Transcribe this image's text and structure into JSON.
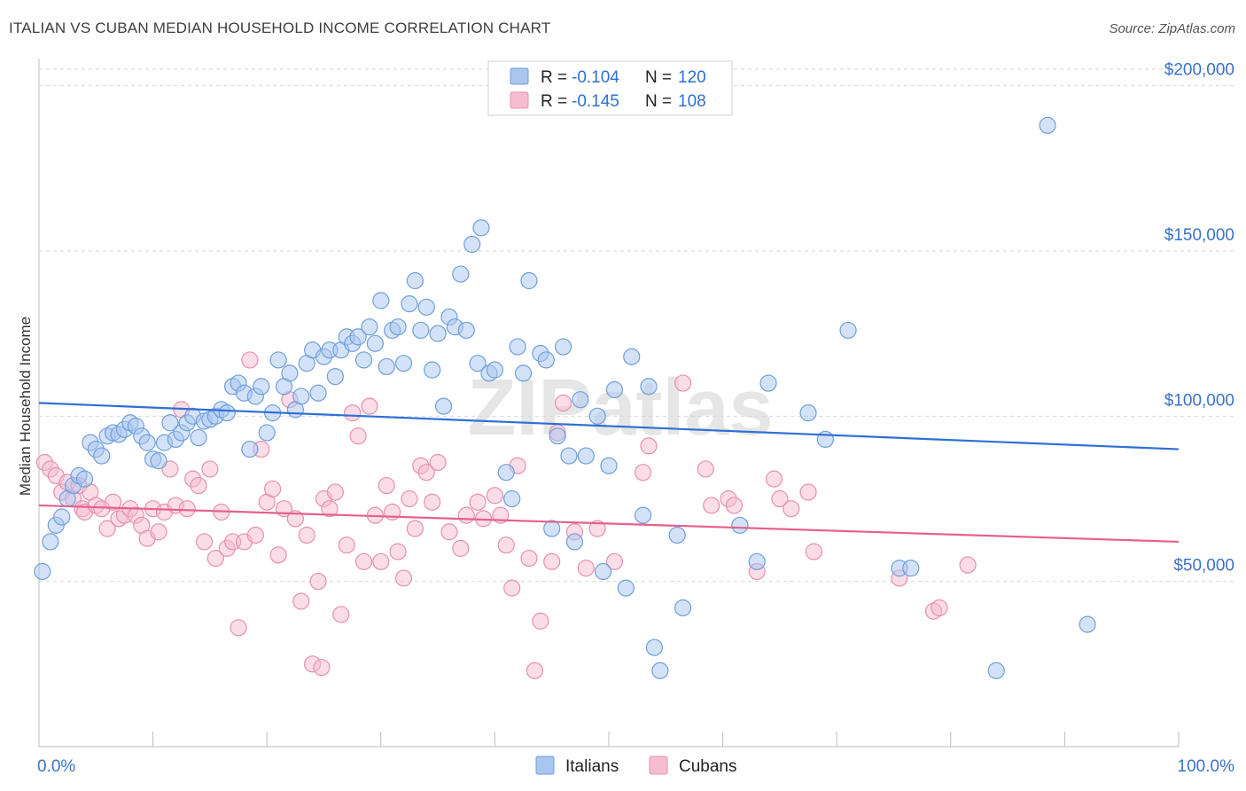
{
  "title": "ITALIAN VS CUBAN MEDIAN HOUSEHOLD INCOME CORRELATION CHART",
  "source": "Source: ZipAtlas.com",
  "watermark": "ZIPatlas",
  "colors": {
    "italians_fill": "#a9c6ef",
    "italians_stroke": "#6f9fdd",
    "italians_line": "#2f6fd6",
    "cubans_fill": "#f6bcd0",
    "cubans_stroke": "#e98fb0",
    "cubans_line": "#e5608f",
    "tick_label": "#3a72c9",
    "grid": "#d7d7d7"
  },
  "legend": {
    "rows": [
      {
        "r_label": "R =",
        "r_value": "-0.104",
        "n_label": "N =",
        "n_value": "120"
      },
      {
        "r_label": "R =",
        "r_value": "-0.145",
        "n_label": "N =",
        "n_value": "108"
      }
    ]
  },
  "bottom_legend": [
    "Italians",
    "Cubans"
  ],
  "chart_data": {
    "type": "scatter",
    "ylabel": "Median Household Income",
    "xlabel": "",
    "x_tick_labels": [
      "0.0%",
      "100.0%"
    ],
    "y_tick_labels": [
      "$50,000",
      "$100,000",
      "$150,000",
      "$200,000"
    ],
    "y_ticks": [
      50000,
      100000,
      150000,
      200000
    ],
    "xlim": [
      0,
      100
    ],
    "ylim": [
      0,
      205000
    ],
    "grid": "horizontal dashed",
    "legend_placement": "top-center",
    "series": [
      {
        "name": "Italians",
        "trend": {
          "x0": 0,
          "y0": 104000,
          "x1": 100,
          "y1": 90000
        },
        "points": [
          [
            0.3,
            53000
          ],
          [
            1,
            62000
          ],
          [
            1.5,
            67000
          ],
          [
            2,
            69500
          ],
          [
            2.5,
            75000
          ],
          [
            3,
            79000
          ],
          [
            3.5,
            82000
          ],
          [
            4,
            81000
          ],
          [
            4.5,
            92000
          ],
          [
            5,
            90000
          ],
          [
            5.5,
            88000
          ],
          [
            6,
            94000
          ],
          [
            6.5,
            95000
          ],
          [
            7,
            94500
          ],
          [
            7.5,
            96000
          ],
          [
            8,
            98000
          ],
          [
            8.5,
            97000
          ],
          [
            9,
            94000
          ],
          [
            9.5,
            92000
          ],
          [
            10,
            87000
          ],
          [
            10.5,
            86500
          ],
          [
            11,
            92000
          ],
          [
            11.5,
            98000
          ],
          [
            12,
            93000
          ],
          [
            12.5,
            95000
          ],
          [
            13,
            98000
          ],
          [
            13.5,
            100000
          ],
          [
            14,
            93500
          ],
          [
            14.5,
            98500
          ],
          [
            15,
            99000
          ],
          [
            15.5,
            100000
          ],
          [
            16,
            102000
          ],
          [
            16.5,
            101000
          ],
          [
            17,
            109000
          ],
          [
            17.5,
            110000
          ],
          [
            18,
            107000
          ],
          [
            18.5,
            90000
          ],
          [
            19,
            106000
          ],
          [
            19.5,
            109000
          ],
          [
            20,
            95000
          ],
          [
            20.5,
            101000
          ],
          [
            21,
            117000
          ],
          [
            21.5,
            109000
          ],
          [
            22,
            113000
          ],
          [
            22.5,
            102000
          ],
          [
            23,
            106000
          ],
          [
            23.5,
            116000
          ],
          [
            24,
            120000
          ],
          [
            24.5,
            107000
          ],
          [
            25,
            118000
          ],
          [
            25.5,
            120000
          ],
          [
            26,
            112000
          ],
          [
            26.5,
            120000
          ],
          [
            27,
            124000
          ],
          [
            27.5,
            122000
          ],
          [
            28,
            124000
          ],
          [
            28.5,
            117000
          ],
          [
            29,
            127000
          ],
          [
            29.5,
            122000
          ],
          [
            30,
            135000
          ],
          [
            30.5,
            115000
          ],
          [
            31,
            126000
          ],
          [
            31.5,
            127000
          ],
          [
            32,
            116000
          ],
          [
            32.5,
            134000
          ],
          [
            33,
            141000
          ],
          [
            33.5,
            126000
          ],
          [
            34,
            133000
          ],
          [
            34.5,
            114000
          ],
          [
            35,
            125000
          ],
          [
            35.5,
            103000
          ],
          [
            36,
            130000
          ],
          [
            36.5,
            127000
          ],
          [
            37,
            143000
          ],
          [
            37.5,
            126000
          ],
          [
            38,
            152000
          ],
          [
            38.5,
            116000
          ],
          [
            38.8,
            157000
          ],
          [
            39.5,
            113000
          ],
          [
            40,
            114000
          ],
          [
            41,
            83000
          ],
          [
            41.5,
            75000
          ],
          [
            42,
            121000
          ],
          [
            42.5,
            113000
          ],
          [
            43,
            141000
          ],
          [
            44,
            119000
          ],
          [
            44.5,
            117000
          ],
          [
            45,
            66000
          ],
          [
            45.5,
            94000
          ],
          [
            46,
            121000
          ],
          [
            46.5,
            88000
          ],
          [
            47,
            62000
          ],
          [
            47.5,
            105000
          ],
          [
            48,
            88000
          ],
          [
            49,
            100000
          ],
          [
            49.5,
            53000
          ],
          [
            50,
            85000
          ],
          [
            50.5,
            108000
          ],
          [
            51.5,
            48000
          ],
          [
            52,
            118000
          ],
          [
            53,
            70000
          ],
          [
            53.5,
            109000
          ],
          [
            54,
            30000
          ],
          [
            54.5,
            23000
          ],
          [
            56,
            64000
          ],
          [
            56.5,
            42000
          ],
          [
            61.5,
            67000
          ],
          [
            63,
            56000
          ],
          [
            64,
            110000
          ],
          [
            67.5,
            101000
          ],
          [
            69,
            93000
          ],
          [
            71,
            126000
          ],
          [
            75.5,
            54000
          ],
          [
            76.5,
            54000
          ],
          [
            84,
            23000
          ],
          [
            88.5,
            188000
          ],
          [
            92,
            37000
          ]
        ]
      },
      {
        "name": "Cubans",
        "trend": {
          "x0": 0,
          "y0": 73000,
          "x1": 100,
          "y1": 62000
        },
        "points": [
          [
            0.5,
            86000
          ],
          [
            1,
            84000
          ],
          [
            1.5,
            82000
          ],
          [
            2,
            77000
          ],
          [
            2.5,
            80000
          ],
          [
            3,
            75000
          ],
          [
            3.5,
            79000
          ],
          [
            3.8,
            72000
          ],
          [
            4,
            71000
          ],
          [
            4.5,
            77000
          ],
          [
            5,
            73000
          ],
          [
            5.5,
            72000
          ],
          [
            6,
            66000
          ],
          [
            6.5,
            74000
          ],
          [
            7,
            69000
          ],
          [
            7.5,
            70000
          ],
          [
            8,
            72000
          ],
          [
            8.5,
            70000
          ],
          [
            9,
            67000
          ],
          [
            9.5,
            63000
          ],
          [
            10,
            72000
          ],
          [
            10.5,
            65000
          ],
          [
            11,
            71000
          ],
          [
            11.5,
            84000
          ],
          [
            12,
            73000
          ],
          [
            12.5,
            102000
          ],
          [
            13,
            72000
          ],
          [
            13.5,
            81000
          ],
          [
            14,
            79000
          ],
          [
            14.5,
            62000
          ],
          [
            15,
            84000
          ],
          [
            15.5,
            57000
          ],
          [
            16,
            71000
          ],
          [
            16.5,
            60000
          ],
          [
            17,
            62000
          ],
          [
            17.5,
            36000
          ],
          [
            18,
            62000
          ],
          [
            18.5,
            117000
          ],
          [
            19,
            64000
          ],
          [
            19.5,
            90000
          ],
          [
            20,
            74000
          ],
          [
            20.5,
            78000
          ],
          [
            21,
            58000
          ],
          [
            21.5,
            72000
          ],
          [
            22,
            105000
          ],
          [
            22.5,
            69000
          ],
          [
            23,
            44000
          ],
          [
            23.5,
            64000
          ],
          [
            24,
            25000
          ],
          [
            24.5,
            50000
          ],
          [
            24.8,
            24000
          ],
          [
            25,
            75000
          ],
          [
            25.5,
            72000
          ],
          [
            26,
            77000
          ],
          [
            26.5,
            40000
          ],
          [
            27,
            61000
          ],
          [
            27.5,
            101000
          ],
          [
            28,
            94000
          ],
          [
            28.5,
            56000
          ],
          [
            29,
            103000
          ],
          [
            29.5,
            70000
          ],
          [
            30,
            56000
          ],
          [
            30.5,
            79000
          ],
          [
            31,
            71000
          ],
          [
            31.5,
            59000
          ],
          [
            32,
            51000
          ],
          [
            32.5,
            75000
          ],
          [
            33,
            66000
          ],
          [
            33.5,
            85000
          ],
          [
            34,
            83000
          ],
          [
            34.5,
            74000
          ],
          [
            35,
            86000
          ],
          [
            36,
            65000
          ],
          [
            37,
            60000
          ],
          [
            37.5,
            70000
          ],
          [
            38.5,
            74000
          ],
          [
            39,
            69000
          ],
          [
            40,
            76000
          ],
          [
            40.5,
            70000
          ],
          [
            41,
            61000
          ],
          [
            41.5,
            48000
          ],
          [
            42,
            85000
          ],
          [
            43,
            57000
          ],
          [
            43.5,
            23000
          ],
          [
            44,
            38000
          ],
          [
            45,
            56000
          ],
          [
            45.5,
            95000
          ],
          [
            46,
            104000
          ],
          [
            47,
            65000
          ],
          [
            48,
            54000
          ],
          [
            49,
            66000
          ],
          [
            50.5,
            56000
          ],
          [
            53,
            83000
          ],
          [
            53.5,
            91000
          ],
          [
            56.5,
            110000
          ],
          [
            58.5,
            84000
          ],
          [
            59,
            73000
          ],
          [
            60.5,
            75000
          ],
          [
            61,
            73000
          ],
          [
            63,
            53000
          ],
          [
            64.5,
            81000
          ],
          [
            65,
            75000
          ],
          [
            66,
            72000
          ],
          [
            67.5,
            77000
          ],
          [
            68,
            59000
          ],
          [
            75.5,
            51000
          ],
          [
            78.5,
            41000
          ],
          [
            79,
            42000
          ],
          [
            81.5,
            55000
          ]
        ]
      }
    ]
  }
}
